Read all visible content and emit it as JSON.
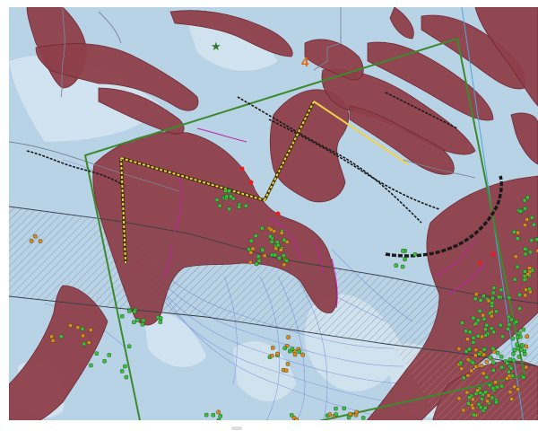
{
  "map": {
    "sheet_label": "4",
    "colors": {
      "background": "#b9d3e6",
      "hillshade": "#d7e6f2",
      "geology_unit": "#8e3f49",
      "geology_outline": "#6e2a33",
      "boundary": "#3c8a2e",
      "fault_line": "#1a1a1a",
      "survey_line": "#f0d24a",
      "dike_magenta": "#c020a8",
      "point_green": "#38c23a",
      "point_orange": "#e08a18",
      "point_red": "#e02020",
      "contour": "#6a7fd8",
      "hatch": "#5a6070",
      "label": "#e06a10",
      "star": "#2f7a2f",
      "meridian": "#4aa8d8"
    },
    "icons": [
      "star-icon"
    ]
  }
}
